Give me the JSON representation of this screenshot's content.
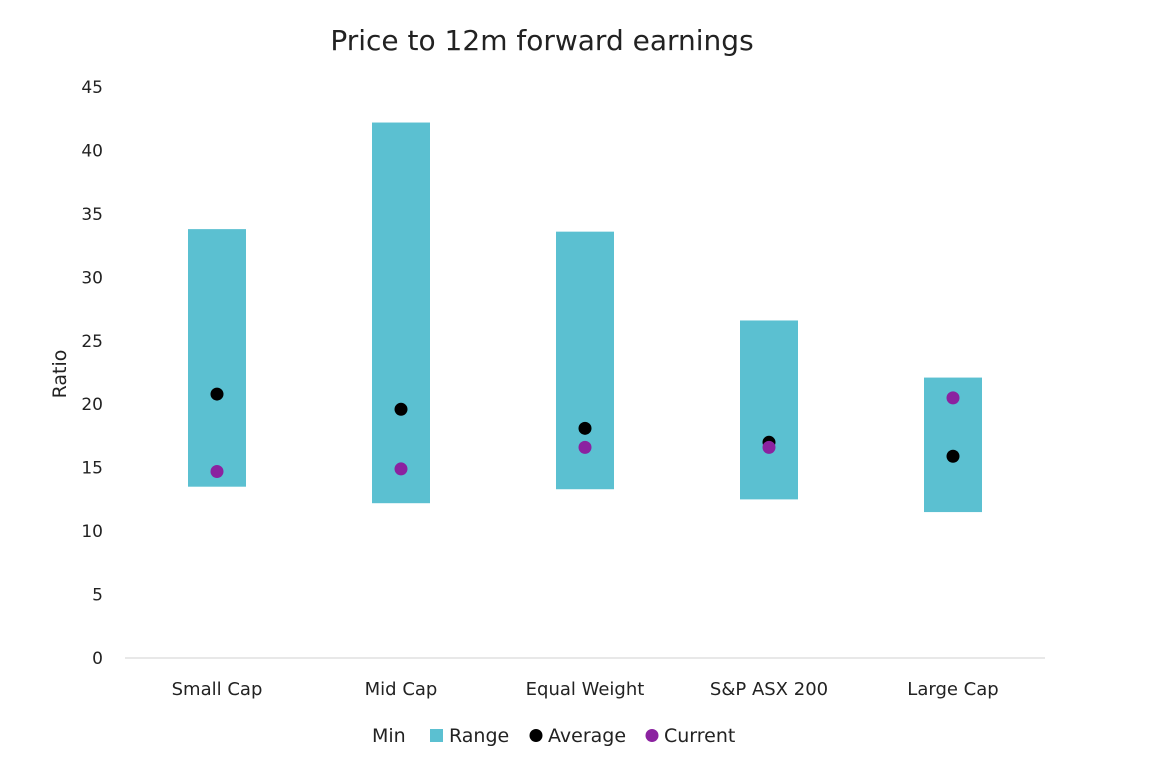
{
  "chart_data": {
    "type": "bar",
    "title": "Price to 12m forward earnings",
    "xlabel": "",
    "ylabel": "Ratio",
    "ylim": [
      0,
      45
    ],
    "yticks": [
      0,
      5,
      10,
      15,
      20,
      25,
      30,
      35,
      40,
      45
    ],
    "categories": [
      "Small Cap",
      "Mid Cap",
      "Equal Weight",
      "S&P ASX 200",
      "Large Cap"
    ],
    "series": [
      {
        "name": "Min",
        "values": [
          13.5,
          12.2,
          13.3,
          12.5,
          11.5
        ]
      },
      {
        "name": "Range",
        "values": [
          20.3,
          30.0,
          20.3,
          14.1,
          10.6
        ]
      },
      {
        "name": "Average",
        "values": [
          20.8,
          19.6,
          18.1,
          17.0,
          15.9
        ]
      },
      {
        "name": "Current",
        "values": [
          14.7,
          14.9,
          16.6,
          16.6,
          20.5
        ]
      }
    ],
    "grid": false,
    "legend": "bottom",
    "colors": {
      "Range": "#5BC0D1",
      "Average": "#000000",
      "Current": "#8B22A0",
      "axis": "#d0d0d0"
    }
  }
}
